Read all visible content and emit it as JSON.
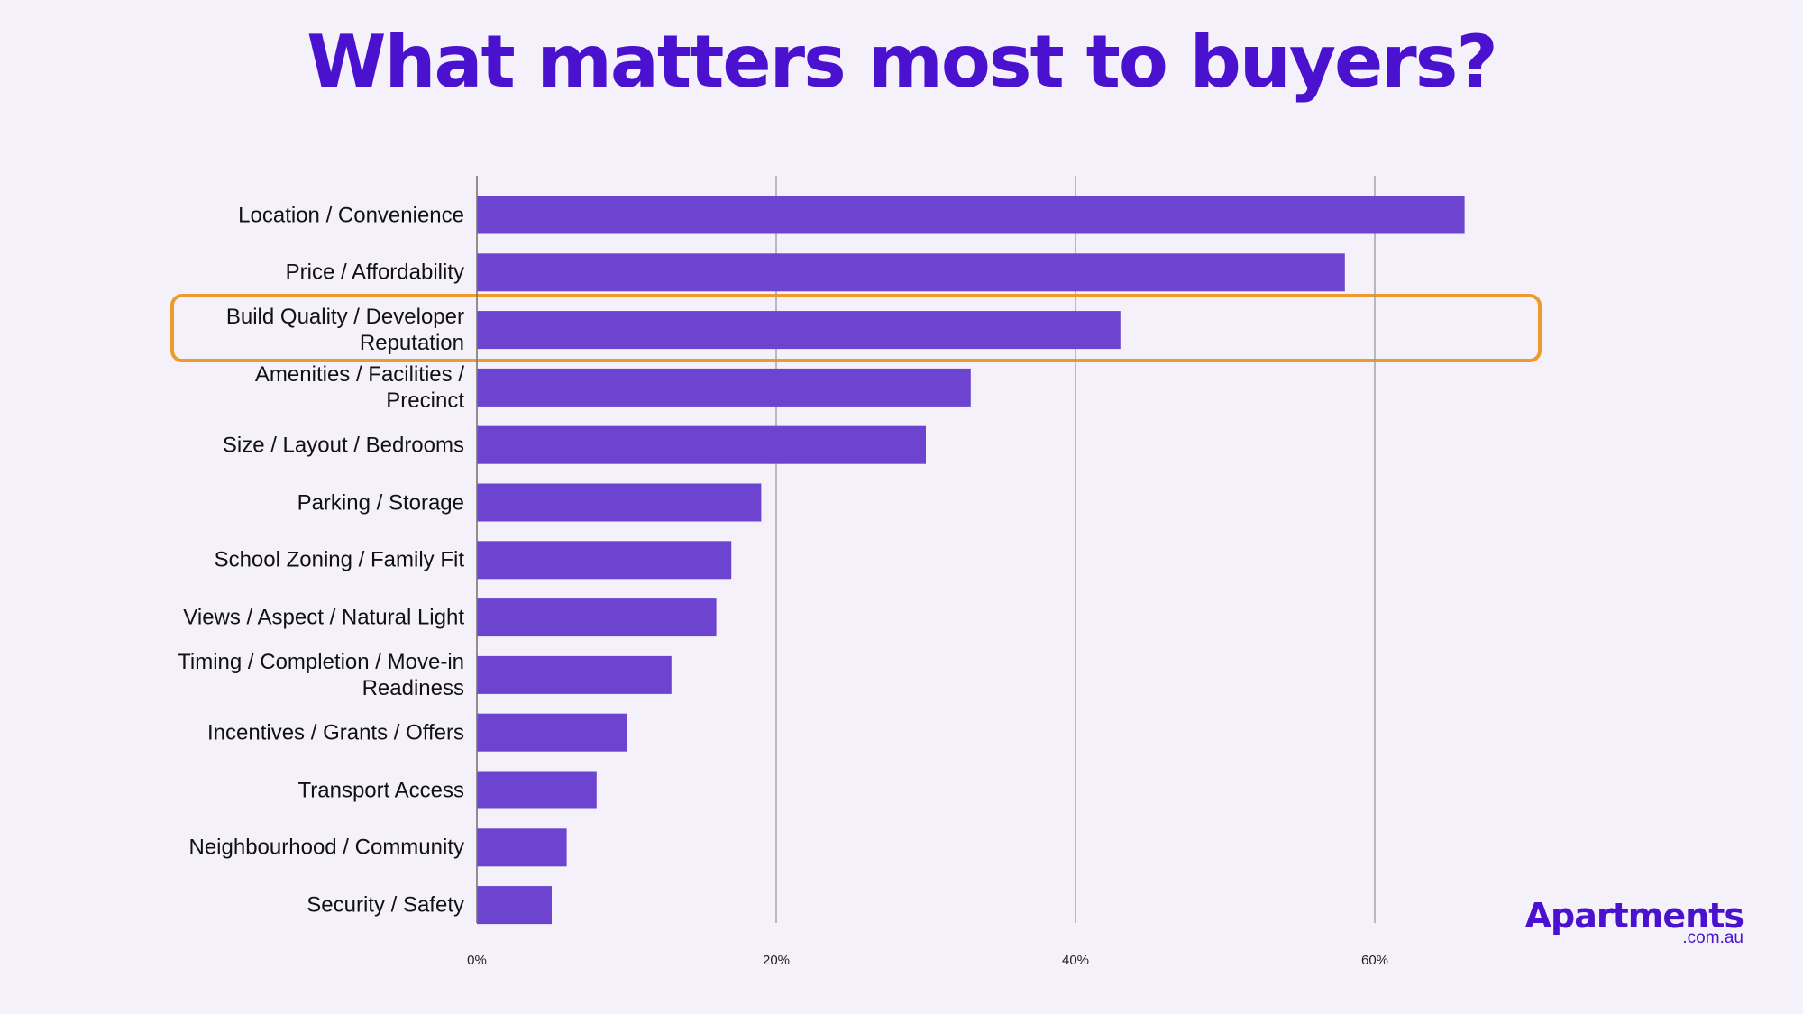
{
  "chart_data": {
    "type": "hbar",
    "title": "What matters most to buyers?",
    "categories": [
      "Location / Convenience",
      "Price / Affordability",
      "Build Quality / Developer Reputation",
      "Amenities / Facilities / Precinct",
      "Size / Layout / Bedrooms",
      "Parking / Storage",
      "School Zoning / Family Fit",
      "Views / Aspect / Natural Light",
      "Timing / Completion / Move-in Readiness",
      "Incentives / Grants / Offers",
      "Transport Access",
      "Neighbourhood / Community",
      "Security / Safety"
    ],
    "values": [
      66,
      58,
      43,
      33,
      30,
      19,
      17,
      16,
      13,
      10,
      8,
      6,
      5
    ],
    "color": "#6c44d0",
    "xlim": [
      0,
      70
    ],
    "xticks": [
      {
        "value": 0,
        "label": "0%"
      },
      {
        "value": 20,
        "label": "20%"
      },
      {
        "value": 40,
        "label": "40%"
      },
      {
        "value": 60,
        "label": "60%"
      }
    ],
    "grid": true
  },
  "logo": {
    "name": "Apartments",
    "domain": ".com.au"
  }
}
